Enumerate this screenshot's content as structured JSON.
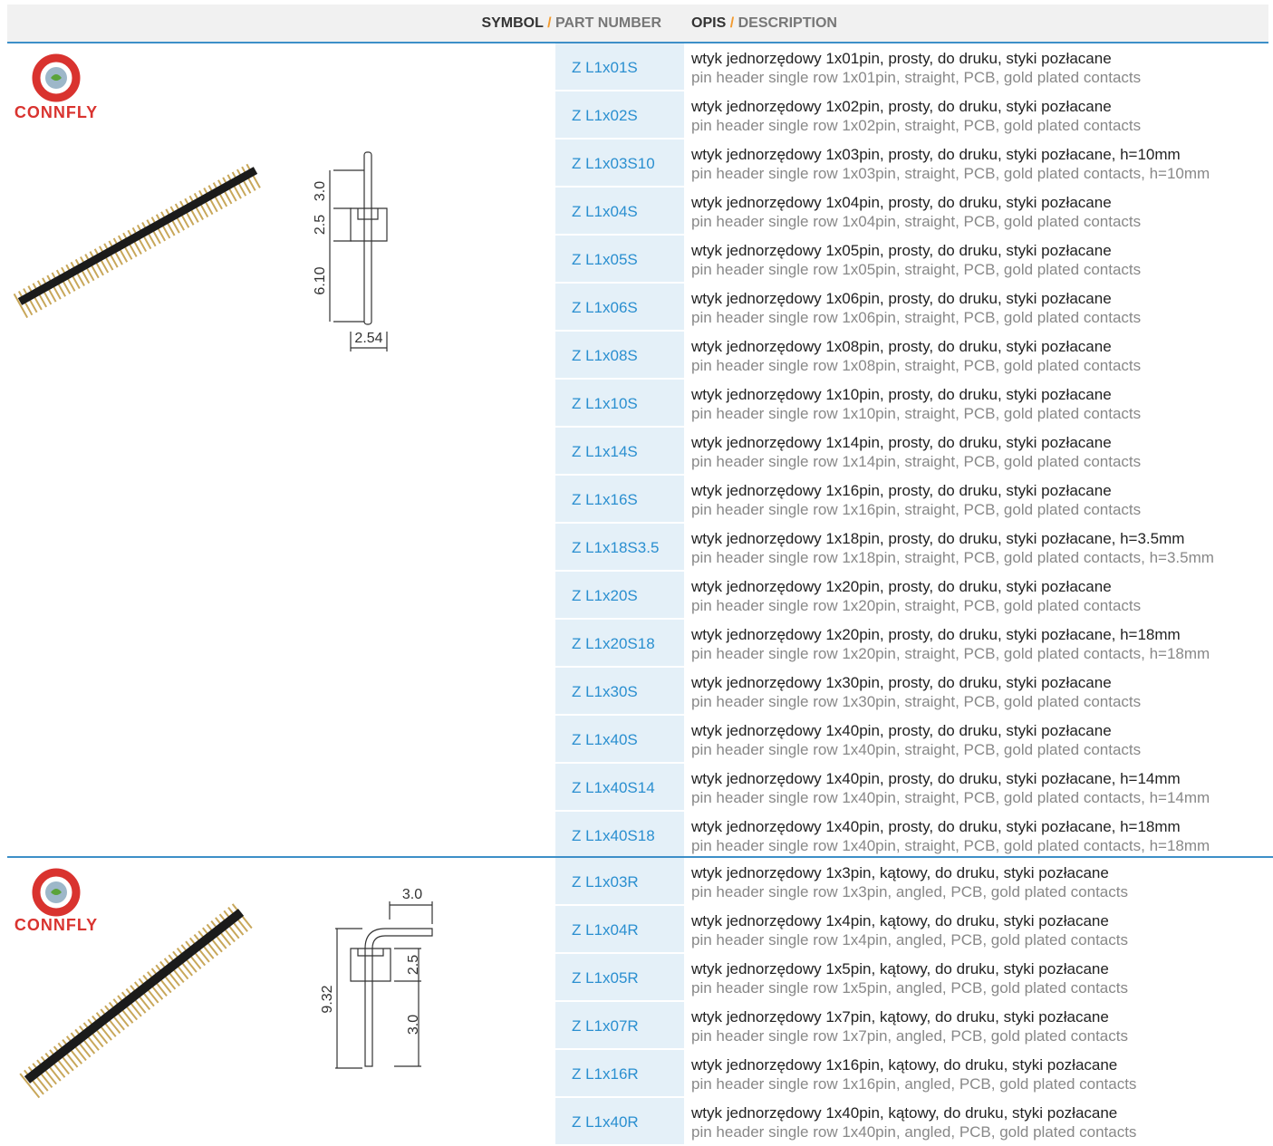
{
  "header": {
    "symbol": "SYMBOL",
    "symbol_sep": "/",
    "part_number": "PART NUMBER",
    "opis": "OPIS",
    "desc_sep": "/",
    "description": "DESCRIPTION"
  },
  "groups": [
    {
      "logo": "CONNFLY",
      "dims": [
        "3.0",
        "2.5",
        "6.10",
        "2.54"
      ],
      "rows": [
        {
          "part": "Z L1x01S",
          "pl": "wtyk jednorzędowy 1x01pin, prosty, do druku, styki pozłacane",
          "en": "pin header single row 1x01pin, straight, PCB, gold plated contacts"
        },
        {
          "part": "Z L1x02S",
          "pl": "wtyk jednorzędowy 1x02pin, prosty, do druku, styki pozłacane",
          "en": "pin header single row 1x02pin, straight, PCB, gold plated contacts"
        },
        {
          "part": "Z L1x03S10",
          "pl": "wtyk jednorzędowy 1x03pin, prosty, do druku, styki pozłacane, h=10mm",
          "en": "pin header single row 1x03pin, straight, PCB, gold plated contacts, h=10mm"
        },
        {
          "part": "Z L1x04S",
          "pl": "wtyk jednorzędowy 1x04pin, prosty, do druku, styki pozłacane",
          "en": "pin header single row 1x04pin, straight, PCB, gold plated contacts"
        },
        {
          "part": "Z L1x05S",
          "pl": "wtyk jednorzędowy 1x05pin, prosty, do druku, styki pozłacane",
          "en": "pin header single row 1x05pin, straight, PCB, gold plated contacts"
        },
        {
          "part": "Z L1x06S",
          "pl": "wtyk jednorzędowy 1x06pin, prosty, do druku, styki pozłacane",
          "en": "pin header single row 1x06pin, straight, PCB, gold plated contacts"
        },
        {
          "part": "Z L1x08S",
          "pl": "wtyk jednorzędowy 1x08pin, prosty, do druku, styki pozłacane",
          "en": "pin header single row 1x08pin, straight, PCB, gold plated contacts"
        },
        {
          "part": "Z L1x10S",
          "pl": "wtyk jednorzędowy 1x10pin, prosty, do druku, styki pozłacane",
          "en": "pin header single row 1x10pin, straight, PCB, gold plated contacts"
        },
        {
          "part": "Z L1x14S",
          "pl": "wtyk jednorzędowy 1x14pin, prosty, do druku, styki pozłacane",
          "en": "pin header single row 1x14pin, straight, PCB, gold plated contacts"
        },
        {
          "part": "Z L1x16S",
          "pl": "wtyk jednorzędowy 1x16pin, prosty, do druku, styki pozłacane",
          "en": "pin header single row 1x16pin, straight, PCB, gold plated contacts"
        },
        {
          "part": "Z L1x18S3.5",
          "pl": "wtyk jednorzędowy 1x18pin, prosty, do druku, styki pozłacane, h=3.5mm",
          "en": "pin header single row 1x18pin, straight, PCB, gold plated contacts, h=3.5mm"
        },
        {
          "part": "Z L1x20S",
          "pl": "wtyk jednorzędowy 1x20pin, prosty, do druku, styki pozłacane",
          "en": "pin header single row 1x20pin, straight, PCB, gold plated contacts"
        },
        {
          "part": "Z L1x20S18",
          "pl": "wtyk jednorzędowy 1x20pin, prosty, do druku, styki pozłacane, h=18mm",
          "en": "pin header single row 1x20pin, straight, PCB, gold plated contacts, h=18mm"
        },
        {
          "part": "Z L1x30S",
          "pl": "wtyk jednorzędowy 1x30pin, prosty, do druku, styki pozłacane",
          "en": "pin header single row 1x30pin, straight, PCB, gold plated contacts"
        },
        {
          "part": "Z L1x40S",
          "pl": "wtyk jednorzędowy 1x40pin, prosty, do druku, styki pozłacane",
          "en": "pin header single row 1x40pin, straight, PCB, gold plated contacts"
        },
        {
          "part": "Z L1x40S14",
          "pl": "wtyk jednorzędowy 1x40pin, prosty, do druku, styki pozłacane, h=14mm",
          "en": "pin header single row 1x40pin, straight, PCB, gold plated contacts, h=14mm"
        },
        {
          "part": "Z L1x40S18",
          "pl": "wtyk jednorzędowy 1x40pin, prosty, do druku, styki pozłacane, h=18mm",
          "en": "pin header single row 1x40pin, straight, PCB, gold plated contacts, h=18mm"
        }
      ]
    },
    {
      "logo": "CONNFLY",
      "dims": [
        "3.0",
        "2.5",
        "9.32",
        "3.0"
      ],
      "rows": [
        {
          "part": "Z L1x03R",
          "pl": "wtyk jednorzędowy 1x3pin, kątowy, do druku, styki pozłacane",
          "en": "pin header single row 1x3pin, angled, PCB, gold plated contacts"
        },
        {
          "part": "Z L1x04R",
          "pl": "wtyk jednorzędowy 1x4pin, kątowy, do druku, styki pozłacane",
          "en": "pin header single row 1x4pin, angled, PCB, gold plated contacts"
        },
        {
          "part": "Z L1x05R",
          "pl": "wtyk jednorzędowy 1x5pin, kątowy, do druku, styki pozłacane",
          "en": "pin header single row 1x5pin, angled, PCB, gold plated contacts"
        },
        {
          "part": "Z L1x07R",
          "pl": "wtyk jednorzędowy 1x7pin, kątowy, do druku, styki pozłacane",
          "en": "pin header single row 1x7pin, angled, PCB, gold plated contacts"
        },
        {
          "part": "Z L1x16R",
          "pl": "wtyk jednorzędowy 1x16pin, kątowy, do druku, styki pozłacane",
          "en": "pin header single row 1x16pin, angled, PCB, gold plated contacts"
        },
        {
          "part": "Z L1x40R",
          "pl": "wtyk jednorzędowy 1x40pin, kątowy, do druku, styki pozłacane",
          "en": "pin header single row 1x40pin, angled, PCB, gold plated contacts"
        }
      ]
    }
  ]
}
